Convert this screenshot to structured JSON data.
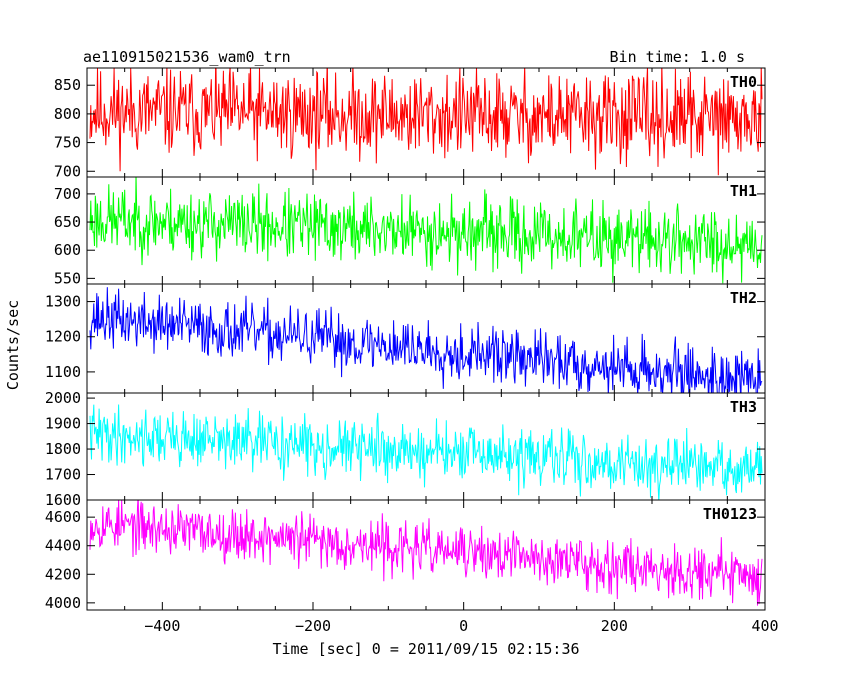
{
  "header": {
    "title": "ae110915021536_wam0_trn",
    "bin_time": "Bin time: 1.0 s"
  },
  "chart_data": {
    "type": "line",
    "xlabel": "Time [sec] 0 = 2011/09/15 02:15:36",
    "ylabel": "Counts/sec",
    "xlim": [
      -500,
      400
    ],
    "x_ticks": [
      -400,
      -200,
      0,
      200,
      400
    ],
    "x_tick_labels": [
      "−400",
      "−200",
      "0",
      "200",
      "400"
    ],
    "grid": false,
    "panels": [
      {
        "name": "TH0",
        "color": "#ff0000",
        "ylim": [
          690,
          880
        ],
        "y_ticks": [
          700,
          750,
          800,
          850
        ],
        "trend_start": 805,
        "trend_end": 790,
        "noise_amplitude": 38,
        "seed": 11
      },
      {
        "name": "TH1",
        "color": "#00ff00",
        "ylim": [
          540,
          730
        ],
        "y_ticks": [
          550,
          600,
          650,
          700
        ],
        "trend_start": 655,
        "trend_end": 612,
        "noise_amplitude": 30,
        "seed": 23
      },
      {
        "name": "TH2",
        "color": "#0000ff",
        "ylim": [
          1040,
          1350
        ],
        "y_ticks": [
          1100,
          1200,
          1300
        ],
        "trend_start": 1255,
        "trend_end": 1075,
        "noise_amplitude": 40,
        "seed": 37
      },
      {
        "name": "TH3",
        "color": "#00ffff",
        "ylim": [
          1600,
          2020
        ],
        "y_ticks": [
          1600,
          1700,
          1800,
          1900,
          2000
        ],
        "trend_start": 1860,
        "trend_end": 1715,
        "noise_amplitude": 55,
        "seed": 41
      },
      {
        "name": "TH0123",
        "color": "#ff00ff",
        "ylim": [
          3950,
          4720
        ],
        "y_ticks": [
          4000,
          4200,
          4400,
          4600
        ],
        "trend_start": 4560,
        "trend_end": 4185,
        "noise_amplitude": 90,
        "seed": 53
      }
    ]
  }
}
